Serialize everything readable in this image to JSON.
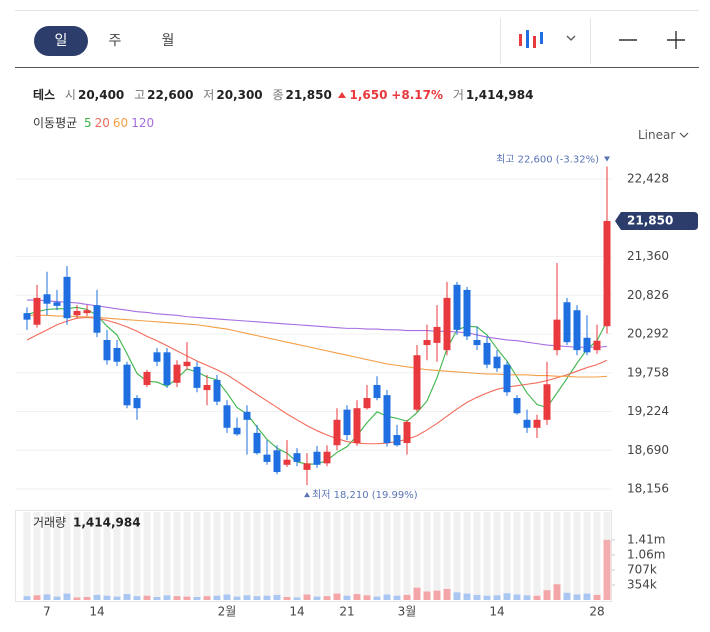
{
  "toolbar": {
    "tabs": [
      "일",
      "주",
      "월"
    ],
    "scale": "Linear"
  },
  "info": {
    "name": "테스",
    "open_label": "시",
    "open": "20,400",
    "high_label": "고",
    "high": "22,600",
    "low_label": "저",
    "low": "20,300",
    "close_label": "종",
    "close": "21,850",
    "change": "1,650",
    "change_pct": "+8.17%",
    "volume_label": "거",
    "volume": "1,414,984"
  },
  "chart_data": {
    "type": "candlestick",
    "ma_title": "이동평균",
    "categories": [
      null,
      null,
      "7",
      null,
      null,
      null,
      null,
      "14",
      null,
      null,
      null,
      null,
      null,
      null,
      null,
      null,
      null,
      null,
      null,
      null,
      "2월",
      null,
      null,
      null,
      null,
      null,
      null,
      "14",
      null,
      null,
      null,
      null,
      "21",
      null,
      null,
      null,
      null,
      null,
      "3월",
      null,
      null,
      null,
      null,
      null,
      null,
      null,
      null,
      "14",
      null,
      null,
      null,
      null,
      null,
      null,
      null,
      null,
      null,
      "28",
      null
    ],
    "open": [
      20580,
      20420,
      20840,
      20730,
      21080,
      20550,
      20580,
      20690,
      20210,
      20100,
      19870,
      19410,
      19590,
      20040,
      20040,
      19620,
      19850,
      19840,
      19520,
      19660,
      19310,
      19000,
      19220,
      18930,
      18630,
      18690,
      18490,
      18650,
      18420,
      18670,
      18510,
      18760,
      19250,
      18790,
      19270,
      19590,
      19450,
      18900,
      18790,
      19250,
      20140,
      20170,
      20070,
      20970,
      20900,
      20210,
      20170,
      19980,
      19870,
      19410,
      19110,
      19000,
      19110,
      20070,
      20730,
      20620,
      20240,
      20070,
      20400
    ],
    "high": [
      20660,
      20970,
      21150,
      20900,
      21230,
      20690,
      20690,
      20900,
      20350,
      20210,
      19910,
      19450,
      19800,
      20100,
      20100,
      19930,
      20180,
      19910,
      19730,
      19730,
      19380,
      19140,
      19310,
      19040,
      18830,
      18760,
      18830,
      18720,
      18650,
      18750,
      18760,
      19270,
      19310,
      19380,
      19590,
      19710,
      19520,
      19040,
      19110,
      20140,
      20420,
      20690,
      21010,
      21010,
      20940,
      20400,
      20260,
      20070,
      19910,
      19450,
      19250,
      19180,
      19910,
      21270,
      20790,
      20690,
      20550,
      20420,
      22600
    ],
    "low": [
      20350,
      20380,
      20550,
      20620,
      20420,
      20510,
      20540,
      20250,
      19870,
      19850,
      19270,
      19110,
      19560,
      19850,
      19550,
      19560,
      19800,
      19490,
      19310,
      19310,
      18930,
      18890,
      18630,
      18630,
      18490,
      18360,
      18460,
      18470,
      18210,
      18450,
      18470,
      18690,
      18830,
      18750,
      19250,
      19380,
      18740,
      18740,
      18630,
      19220,
      19930,
      19910,
      20000,
      20280,
      20210,
      20070,
      19820,
      19770,
      19440,
      19180,
      18930,
      18860,
      19040,
      20000,
      20140,
      20000,
      20000,
      20020,
      20300
    ],
    "close": [
      20490,
      20790,
      20710,
      20680,
      20510,
      20610,
      20620,
      20310,
      19930,
      19910,
      19310,
      19270,
      19770,
      19910,
      19590,
      19870,
      19910,
      19550,
      19590,
      19360,
      19000,
      18910,
      19110,
      18650,
      18530,
      18390,
      18560,
      18530,
      18510,
      18490,
      18670,
      19110,
      18900,
      19270,
      19410,
      19410,
      18790,
      18760,
      19080,
      20000,
      20210,
      20390,
      20790,
      20350,
      20260,
      20140,
      19870,
      19820,
      19490,
      19200,
      19000,
      19110,
      19600,
      20490,
      20180,
      20070,
      20040,
      20200,
      21850
    ],
    "volume": [
      90000,
      110000,
      130000,
      80000,
      150000,
      60000,
      70000,
      120000,
      100000,
      80000,
      140000,
      90000,
      100000,
      70000,
      110000,
      90000,
      80000,
      70000,
      90000,
      100000,
      130000,
      80000,
      110000,
      90000,
      100000,
      120000,
      70000,
      60000,
      130000,
      80000,
      90000,
      150000,
      100000,
      140000,
      110000,
      80000,
      130000,
      100000,
      120000,
      290000,
      200000,
      220000,
      260000,
      180000,
      150000,
      120000,
      100000,
      110000,
      160000,
      130000,
      110000,
      100000,
      230000,
      370000,
      170000,
      130000,
      150000,
      120000,
      1414984
    ],
    "up_color": "#e8393e",
    "down_color": "#1f6fe0",
    "up_volume_color": "#f3a5a7",
    "down_volume_color": "#a9c7f1",
    "ma": [
      {
        "name": "5",
        "color": "#3cb54a",
        "values": [
          20560,
          20600,
          20630,
          20640,
          20640,
          20660,
          20630,
          20550,
          20400,
          20280,
          20020,
          19750,
          19640,
          19630,
          19570,
          19680,
          19810,
          19770,
          19700,
          19660,
          19480,
          19280,
          19190,
          19010,
          18840,
          18720,
          18650,
          18530,
          18500,
          18500,
          18550,
          18660,
          18740,
          18890,
          19070,
          19220,
          19160,
          19130,
          19090,
          19210,
          19370,
          19690,
          20090,
          20350,
          20400,
          20390,
          20280,
          20090,
          19920,
          19700,
          19480,
          19320,
          19280,
          19480,
          19680,
          19890,
          20080,
          20200,
          20470
        ]
      },
      {
        "name": "20",
        "color": "#f26b5b",
        "values": [
          20210,
          20280,
          20350,
          20420,
          20470,
          20510,
          20520,
          20510,
          20480,
          20440,
          20390,
          20330,
          20260,
          20200,
          20130,
          20060,
          19990,
          19920,
          19860,
          19800,
          19730,
          19640,
          19550,
          19460,
          19370,
          19280,
          19190,
          19110,
          19030,
          18960,
          18900,
          18850,
          18810,
          18790,
          18780,
          18780,
          18790,
          18810,
          18840,
          18890,
          18970,
          19060,
          19160,
          19260,
          19350,
          19420,
          19480,
          19530,
          19560,
          19580,
          19600,
          19620,
          19650,
          19690,
          19730,
          19780,
          19830,
          19870,
          19930
        ]
      },
      {
        "name": "60",
        "color": "#f3a047",
        "values": [
          20550,
          20550,
          20550,
          20540,
          20540,
          20530,
          20530,
          20520,
          20510,
          20500,
          20490,
          20480,
          20470,
          20460,
          20450,
          20440,
          20430,
          20420,
          20400,
          20380,
          20360,
          20330,
          20300,
          20270,
          20240,
          20210,
          20180,
          20150,
          20120,
          20090,
          20060,
          20030,
          20000,
          19970,
          19940,
          19910,
          19880,
          19860,
          19840,
          19820,
          19800,
          19790,
          19780,
          19770,
          19760,
          19750,
          19740,
          19740,
          19730,
          19730,
          19730,
          19720,
          19720,
          19710,
          19710,
          19700,
          19700,
          19700,
          19710
        ]
      },
      {
        "name": "120",
        "color": "#a66ee2",
        "values": [
          20760,
          20760,
          20750,
          20740,
          20730,
          20720,
          20700,
          20680,
          20660,
          20640,
          20620,
          20600,
          20590,
          20570,
          20560,
          20550,
          20530,
          20520,
          20510,
          20500,
          20490,
          20480,
          20470,
          20460,
          20450,
          20440,
          20430,
          20420,
          20410,
          20400,
          20390,
          20380,
          20370,
          20370,
          20360,
          20360,
          20350,
          20350,
          20340,
          20340,
          20340,
          20330,
          20330,
          20320,
          20310,
          20280,
          20250,
          20230,
          20210,
          20200,
          20180,
          20160,
          20140,
          20130,
          20120,
          20110,
          20110,
          20110,
          20120
        ]
      }
    ],
    "ylim": [
      17936,
      22828
    ],
    "yticks": [
      {
        "value": 18156,
        "label": "18,156"
      },
      {
        "value": 18690,
        "label": "18,690"
      },
      {
        "value": 19224,
        "label": "19,224"
      },
      {
        "value": 19758,
        "label": "19,758"
      },
      {
        "value": 20292,
        "label": "20,292"
      },
      {
        "value": 20826,
        "label": "20,826"
      },
      {
        "value": 21360,
        "label": "21,360"
      },
      {
        "value": 22428,
        "label": "22,428"
      }
    ],
    "y2lim": [
      0,
      2000000
    ],
    "y2ticks": [
      {
        "value": 353746,
        "label": "354k"
      },
      {
        "value": 707492,
        "label": "707k"
      },
      {
        "value": 1061238,
        "label": "1.06m"
      },
      {
        "value": 1414984,
        "label": "1.41m"
      }
    ],
    "grid": true,
    "current_label": "21,850",
    "high_annotation": "최고 22,600 (-3.32%)",
    "low_annotation": "최저 18,210 (19.99%)",
    "volume_title": "거래량",
    "volume_value": "1,414,984"
  }
}
